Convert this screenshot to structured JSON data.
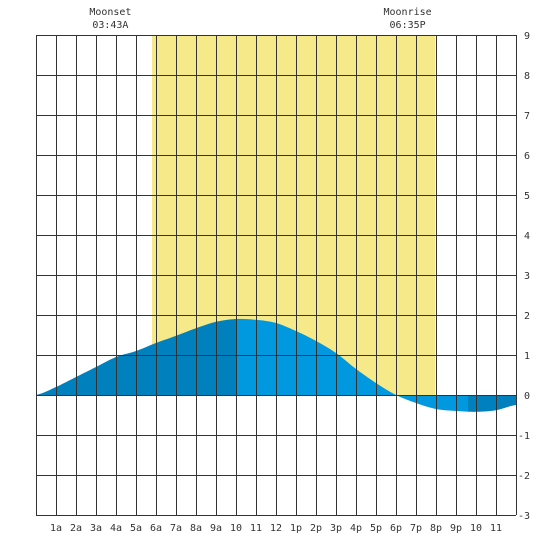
{
  "chart_data": {
    "type": "area",
    "title": "",
    "xlabel": "",
    "ylabel": "",
    "x_ticks": [
      "1a",
      "2a",
      "3a",
      "4a",
      "5a",
      "6a",
      "7a",
      "8a",
      "9a",
      "10",
      "11",
      "12",
      "1p",
      "2p",
      "3p",
      "4p",
      "5p",
      "6p",
      "7p",
      "8p",
      "9p",
      "10",
      "11"
    ],
    "xlim": [
      0,
      24
    ],
    "ylim": [
      -3,
      9
    ],
    "y_ticks": [
      9,
      8,
      7,
      6,
      5,
      4,
      3,
      2,
      1,
      0,
      -1,
      -2,
      -3
    ],
    "grid": true,
    "daylight": {
      "start": 5.8,
      "end": 19.95
    },
    "annotations": [
      {
        "label": "Moonset",
        "time": "03:43A",
        "x": 3.72
      },
      {
        "label": "Moonrise",
        "time": "06:35P",
        "x": 18.58
      }
    ],
    "series": [
      {
        "x": [
          0,
          1,
          2,
          3,
          4,
          5,
          6,
          7,
          8,
          9,
          10,
          11,
          12,
          13,
          14,
          15,
          16,
          17,
          18,
          19,
          20,
          21,
          22,
          23,
          24
        ],
        "values": [
          0.0,
          0.2,
          0.45,
          0.7,
          0.95,
          1.1,
          1.3,
          1.48,
          1.67,
          1.83,
          1.9,
          1.88,
          1.8,
          1.6,
          1.35,
          1.05,
          0.65,
          0.3,
          0.0,
          -0.2,
          -0.35,
          -0.4,
          -0.42,
          -0.38,
          -0.25
        ]
      }
    ],
    "colors": {
      "daylight": "#f5e98a",
      "tide_dark": "#0080bd",
      "tide_light": "#0099e0",
      "grid": "#333333",
      "background": "#ffffff"
    },
    "shading_segments": [
      {
        "from": 0,
        "to": 10,
        "color": "tide_dark"
      },
      {
        "from": 10,
        "to": 21.6,
        "color": "tide_light"
      },
      {
        "from": 21.6,
        "to": 24,
        "color": "tide_dark"
      }
    ]
  }
}
